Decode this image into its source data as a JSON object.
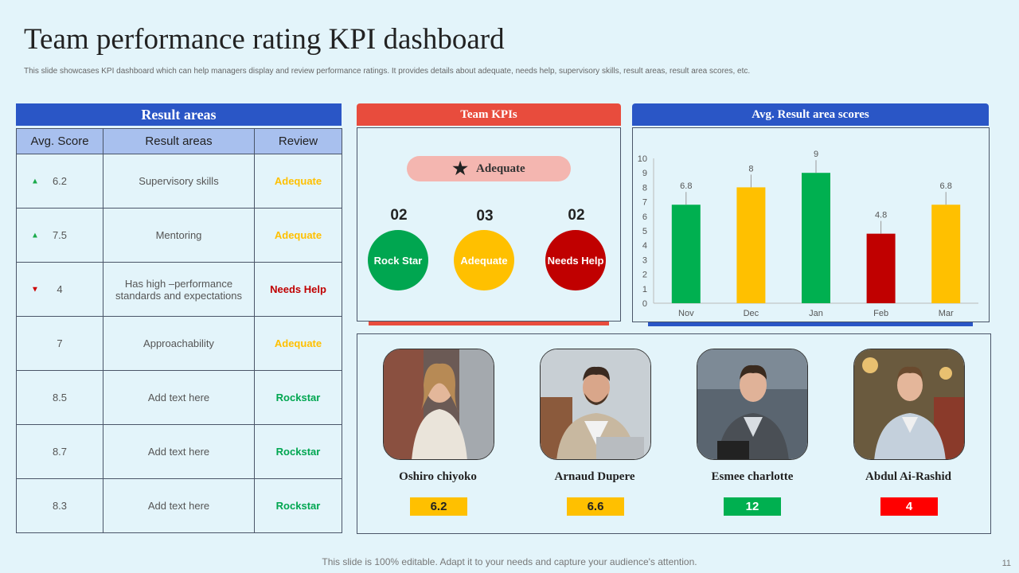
{
  "title": "Team performance rating KPI dashboard",
  "subtitle": "This slide showcases KPI dashboard which can help managers display and review performance ratings. It provides details about adequate, needs help, supervisory skills, result areas, result area scores, etc.",
  "footer": "This slide is 100% editable. Adapt it to your needs and capture your audience's attention.",
  "page_number": "11",
  "colors": {
    "blue": "#2a56c6",
    "red": "#e84c3d",
    "green": "#00b050",
    "yellow": "#ffc000",
    "darkred": "#c00000"
  },
  "result_areas": {
    "header": "Result areas",
    "columns": [
      "Avg. Score",
      "Result areas",
      "Review"
    ],
    "rows": [
      {
        "trend": "up",
        "score": "6.2",
        "area": "Supervisory  skills",
        "review": "Adequate",
        "review_color": "#ffc000"
      },
      {
        "trend": "up",
        "score": "7.5",
        "area": "Mentoring",
        "review": "Adequate",
        "review_color": "#ffc000"
      },
      {
        "trend": "down",
        "score": "4",
        "area": "Has high –performance standards and expectations",
        "review": "Needs Help",
        "review_color": "#c00000"
      },
      {
        "trend": "",
        "score": "7",
        "area": "Approachability",
        "review": "Adequate",
        "review_color": "#ffc000"
      },
      {
        "trend": "",
        "score": "8.5",
        "area": "Add text here",
        "review": "Rockstar",
        "review_color": "#00a650"
      },
      {
        "trend": "",
        "score": "8.7",
        "area": "Add text here",
        "review": "Rockstar",
        "review_color": "#00a650"
      },
      {
        "trend": "",
        "score": "8.3",
        "area": "Add text here",
        "review": "Rockstar",
        "review_color": "#00a650"
      }
    ]
  },
  "team_kpis": {
    "header": "Team KPIs",
    "highlight": "Adequate",
    "highlight_icon": "star-icon",
    "items": [
      {
        "count": "02",
        "label": "Rock Star",
        "color": "#00a650"
      },
      {
        "count": "03",
        "label": "Adequate",
        "color": "#ffc000"
      },
      {
        "count": "02",
        "label": "Needs Help",
        "color": "#c00000"
      }
    ]
  },
  "chart_data": {
    "type": "bar",
    "title": "Avg. Result area scores",
    "categories": [
      "Nov",
      "Dec",
      "Jan",
      "Feb",
      "Mar"
    ],
    "values": [
      6.8,
      8,
      9,
      4.8,
      6.8
    ],
    "data_labels": [
      "6.8",
      "8",
      "9",
      "4.8",
      "6.8"
    ],
    "colors": [
      "#00b050",
      "#ffc000",
      "#00b050",
      "#c00000",
      "#ffc000"
    ],
    "ylim": [
      0,
      10
    ],
    "yticks": [
      "0",
      "1",
      "2",
      "3",
      "4",
      "5",
      "6",
      "7",
      "8",
      "9",
      "10"
    ],
    "xlabel": "",
    "ylabel": ""
  },
  "people": [
    {
      "name": "Oshiro chiyoko",
      "score": "6.2",
      "score_color": "#ffc000",
      "text_color": "#222"
    },
    {
      "name": "Arnaud Dupere",
      "score": "6.6",
      "score_color": "#ffc000",
      "text_color": "#222"
    },
    {
      "name": "Esmee charlotte",
      "score": "12",
      "score_color": "#00b050",
      "text_color": "#fff"
    },
    {
      "name": "Abdul Ai-Rashid",
      "score": "4",
      "score_color": "#ff0000",
      "text_color": "#fff"
    }
  ]
}
